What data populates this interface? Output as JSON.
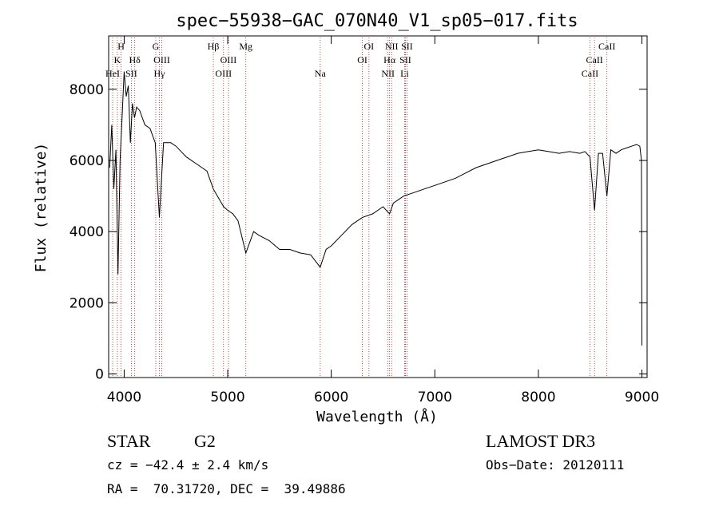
{
  "chart_data": {
    "type": "line",
    "title": "spec−55938−GAC_070N40_V1_sp05−017.fits",
    "xlabel": "Wavelength (Å)",
    "ylabel": "Flux (relative)",
    "xlim": [
      3850,
      9050
    ],
    "ylim": [
      -100,
      9500
    ],
    "xticks": [
      4000,
      5000,
      6000,
      7000,
      8000,
      9000
    ],
    "yticks": [
      0,
      2000,
      4000,
      6000,
      8000
    ],
    "grid": false,
    "line_color": "#000000",
    "marker_color": "#b22222",
    "series": [
      {
        "x": [
          3860,
          3880,
          3900,
          3920,
          3940,
          3960,
          3980,
          4000,
          4020,
          4040,
          4060,
          4080,
          4100,
          4120,
          4150,
          4200,
          4250,
          4300,
          4340,
          4380,
          4450,
          4500,
          4600,
          4700,
          4800,
          4861,
          4900,
          4960,
          5000,
          5050,
          5100,
          5175,
          5250,
          5300,
          5400,
          5500,
          5600,
          5700,
          5800,
          5893,
          5950,
          6000,
          6100,
          6200,
          6300,
          6400,
          6500,
          6563,
          6600,
          6700,
          6800,
          6900,
          7000,
          7100,
          7200,
          7300,
          7400,
          7500,
          7600,
          7700,
          7800,
          7900,
          8000,
          8100,
          8200,
          8300,
          8400,
          8450,
          8498,
          8542,
          8580,
          8620,
          8662,
          8700,
          8750,
          8800,
          8850,
          8900,
          8950,
          8980,
          8995,
          9000
        ],
        "y": [
          5800,
          7000,
          5200,
          6300,
          2800,
          6000,
          7200,
          8500,
          7800,
          8100,
          6500,
          7600,
          7200,
          7500,
          7400,
          7000,
          6900,
          6500,
          4400,
          6500,
          6500,
          6400,
          6100,
          5900,
          5700,
          5200,
          5000,
          4700,
          4600,
          4500,
          4300,
          3400,
          4000,
          3900,
          3750,
          3500,
          3500,
          3400,
          3350,
          3000,
          3500,
          3600,
          3900,
          4200,
          4400,
          4500,
          4700,
          4500,
          4800,
          5000,
          5100,
          5200,
          5300,
          5400,
          5500,
          5650,
          5800,
          5900,
          6000,
          6100,
          6200,
          6250,
          6300,
          6250,
          6200,
          6250,
          6200,
          6250,
          6100,
          4600,
          6200,
          6200,
          5000,
          6300,
          6200,
          6300,
          6350,
          6400,
          6450,
          6400,
          6000,
          800
        ]
      }
    ],
    "line_markers": [
      {
        "name": "H",
        "x": 3970,
        "row": 1
      },
      {
        "name": "K",
        "x": 3934,
        "row": 2
      },
      {
        "name": "HeI",
        "x": 3889,
        "row": 3
      },
      {
        "name": "SII",
        "x": 4069,
        "row": 3
      },
      {
        "name": "Hδ",
        "x": 4102,
        "row": 2
      },
      {
        "name": "G",
        "x": 4305,
        "row": 1
      },
      {
        "name": "OIII",
        "x": 4363,
        "row": 2
      },
      {
        "name": "Hγ",
        "x": 4340,
        "row": 3
      },
      {
        "name": "Hβ",
        "x": 4861,
        "row": 1
      },
      {
        "name": "OIII",
        "x": 4959,
        "row": 3
      },
      {
        "name": "OIII",
        "x": 5007,
        "row": 2
      },
      {
        "name": "Mg",
        "x": 5175,
        "row": 1
      },
      {
        "name": "Na",
        "x": 5893,
        "row": 3
      },
      {
        "name": "OI",
        "x": 6300,
        "row": 2
      },
      {
        "name": "OI",
        "x": 6364,
        "row": 1
      },
      {
        "name": "NII",
        "x": 6548,
        "row": 3
      },
      {
        "name": "NII",
        "x": 6583,
        "row": 1
      },
      {
        "name": "Hα",
        "x": 6563,
        "row": 2
      },
      {
        "name": "SII",
        "x": 6716,
        "row": 2
      },
      {
        "name": "SII",
        "x": 6731,
        "row": 1
      },
      {
        "name": "Li",
        "x": 6708,
        "row": 3
      },
      {
        "name": "CaII",
        "x": 8498,
        "row": 3
      },
      {
        "name": "CaII",
        "x": 8542,
        "row": 2
      },
      {
        "name": "CaII",
        "x": 8662,
        "row": 1
      }
    ]
  },
  "footer": {
    "object_class": "STAR",
    "subclass": "G2",
    "survey": "LAMOST DR3",
    "cz": "cz = −42.4 ± 2.4 km/s",
    "obs_date": "Obs−Date: 20120111",
    "radec": "RA =  70.31720, DEC =  39.49886"
  }
}
